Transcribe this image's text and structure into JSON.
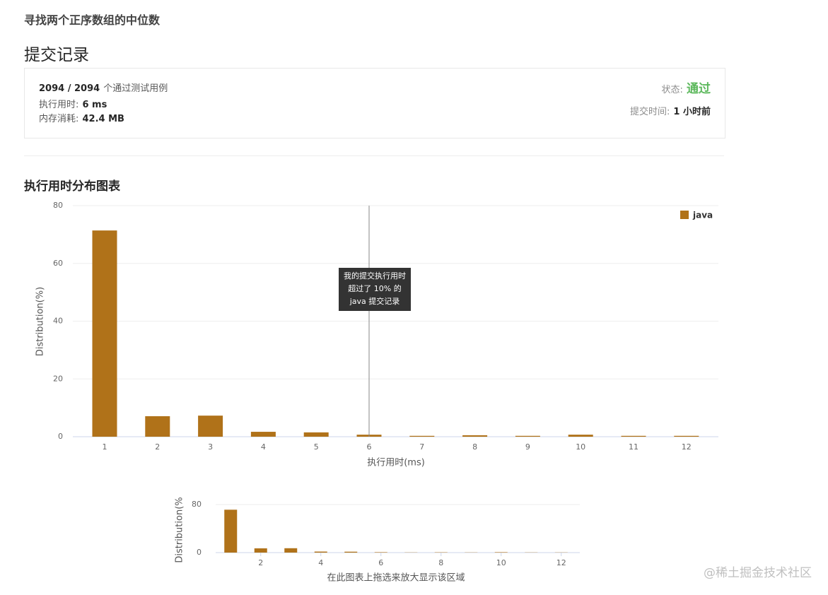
{
  "header": {
    "problem_title": "寻找两个正序数组的中位数",
    "page_title": "提交记录"
  },
  "summary": {
    "passed": "2094 / 2094",
    "passed_suffix": "个通过测试用例",
    "runtime_label": "执行用时:",
    "runtime": "6 ms",
    "memory_label": "内存消耗:",
    "memory": "42.4 MB",
    "status_label": "状态:",
    "status": "通过",
    "time_label": "提交时间:",
    "time": "1 小时前"
  },
  "section_title": "执行用时分布图表",
  "watermark": "@稀土掘金技术社区",
  "chart_data": [
    {
      "type": "bar",
      "x": [
        1,
        2,
        3,
        4,
        5,
        6,
        7,
        8,
        9,
        10,
        11,
        12
      ],
      "xlim": [
        0.5,
        12.5
      ],
      "series": [
        {
          "name": "java",
          "color": "#b07219",
          "values": [
            71.4,
            7.1,
            7.3,
            1.7,
            1.5,
            0.7,
            0.3,
            0.5,
            0.3,
            0.7,
            0.3,
            0.3
          ]
        }
      ],
      "ylim": [
        0,
        80
      ],
      "yticks": [
        0,
        20,
        40,
        60,
        80
      ],
      "grid": true,
      "x_label": "执行用时(ms)",
      "y_label": "Distribution(%)",
      "legend": "top-right",
      "annotation": {
        "x": 6,
        "lines": [
          "我的提交执行用时",
          "超过了 10% 的",
          "java 提交记录"
        ]
      }
    },
    {
      "type": "navigator",
      "xlim": [
        0.5,
        12.5
      ],
      "xticks": [
        2,
        4,
        6,
        8,
        10,
        12
      ],
      "ylim": [
        0,
        80
      ],
      "yticks": [
        0,
        80
      ],
      "y_label": "Distribution(%",
      "x_label": "在此图表上拖选来放大显示该区域"
    }
  ]
}
